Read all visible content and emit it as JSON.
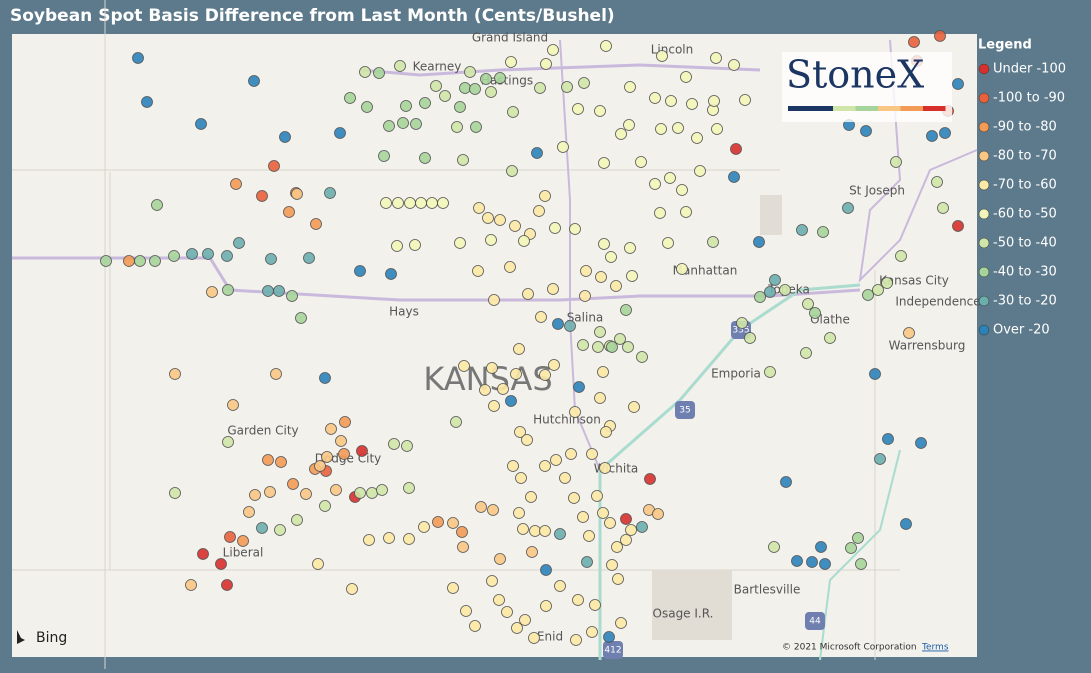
{
  "header": {
    "title": "Soybean Spot Basis Difference from Last Month (Cents/Bushel)"
  },
  "legend": {
    "title": "Legend",
    "items": [
      {
        "label": "Under -100",
        "color": "#d7302c"
      },
      {
        "label": "-100 to -90",
        "color": "#e8603c"
      },
      {
        "label": "-90 to -80",
        "color": "#f39a55"
      },
      {
        "label": "-80 to -70",
        "color": "#f9c784"
      },
      {
        "label": "-70 to -60",
        "color": "#fde9a6"
      },
      {
        "label": "-60 to -50",
        "color": "#f3f6b8"
      },
      {
        "label": "-50 to -40",
        "color": "#cfe6a8"
      },
      {
        "label": "-40 to -30",
        "color": "#a6d49a"
      },
      {
        "label": "-30 to -20",
        "color": "#6aaeae"
      },
      {
        "label": "Over -20",
        "color": "#2b83ba"
      }
    ]
  },
  "map": {
    "labels": [
      "Grand Island",
      "Kearney",
      "Hastings",
      "Lincoln",
      "St Joseph",
      "Kansas City",
      "Independence",
      "Manhattan",
      "Topeka",
      "Hays",
      "Salina",
      "Olathe",
      "Warrensburg",
      "KANSAS",
      "Emporia",
      "Garden City",
      "Dodge City",
      "Hutchinson",
      "Wichita",
      "Liberal",
      "Bartlesville",
      "Osage I.R.",
      "Enid"
    ],
    "shields": [
      "335",
      "35",
      "44",
      "412"
    ],
    "logo": "StoneX",
    "bing": "Bing",
    "attribution": "© 2021 Microsoft Corporation",
    "terms": "Terms"
  }
}
